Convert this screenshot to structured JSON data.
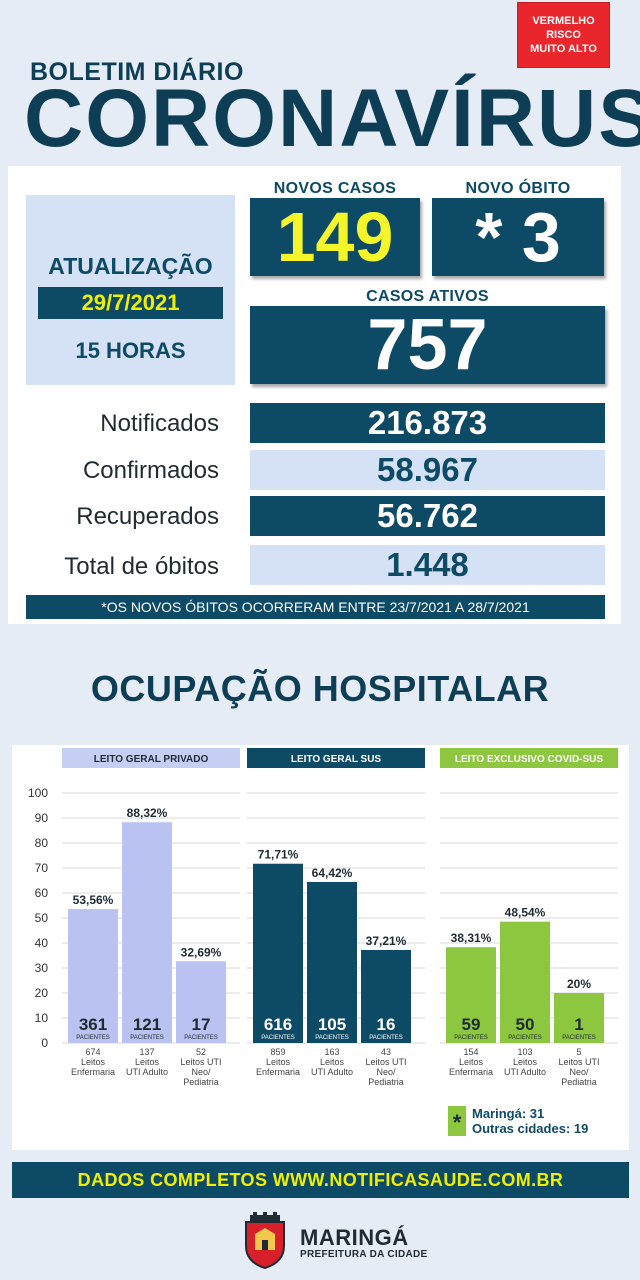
{
  "header": {
    "risk_badge": [
      "VERMELHO",
      "RISCO",
      "MUITO ALTO"
    ],
    "subtitle": "BOLETIM DIÁRIO",
    "title": "CORONAVÍRUS"
  },
  "update": {
    "label": "ATUALIZAÇÃO",
    "date": "29/7/2021",
    "hour": "15 HORAS"
  },
  "stats": {
    "novos_casos_label": "NOVOS CASOS",
    "novos_casos": "149",
    "novo_obito_label": "NOVO ÓBITO",
    "novo_obito": "* 3",
    "casos_ativos_label": "CASOS ATIVOS",
    "casos_ativos": "757"
  },
  "totals": [
    {
      "label": "Notificados",
      "value": "216.873"
    },
    {
      "label": "Confirmados",
      "value": "58.967"
    },
    {
      "label": "Recuperados",
      "value": "56.762"
    },
    {
      "label": "Total de óbitos",
      "value": "1.448"
    }
  ],
  "note": "*OS NOVOS ÓBITOS OCORRERAM ENTRE 23/7/2021 A 28/7/2021",
  "hospital_title": "OCUPAÇÃO HOSPITALAR",
  "colors": {
    "navy": "#0d4a66",
    "lilac": "#b9c2f0",
    "lilac_dark": "#c7cef4",
    "green": "#8dc63f",
    "yellow": "#f4f62a",
    "red": "#e8262b"
  },
  "chart_data": {
    "type": "bar",
    "ylim": [
      0,
      100
    ],
    "yticks": [
      0,
      10,
      20,
      30,
      40,
      50,
      60,
      70,
      80,
      90,
      100
    ],
    "patients_label": "PACIENTES",
    "groups": [
      {
        "name": "LEITO GERAL PRIVADO",
        "color": "#b9c2f0",
        "header_color": "#c7cef4",
        "header_text_color": "#1f2b33",
        "bars": [
          {
            "label": "53,56%",
            "value": 53.56,
            "patients": "361",
            "beds": [
              "674",
              "Leitos",
              "Enfermaria"
            ]
          },
          {
            "label": "88,32%",
            "value": 88.32,
            "patients": "121",
            "beds": [
              "137",
              "Leitos",
              "UTI Adulto"
            ]
          },
          {
            "label": "32,69%",
            "value": 32.69,
            "patients": "17",
            "beds": [
              "52",
              "Leitos UTI",
              "Neo/",
              "Pediatria"
            ]
          }
        ]
      },
      {
        "name": "LEITO GERAL SUS",
        "color": "#0d4a66",
        "header_color": "#0d4a66",
        "header_text_color": "#ffffff",
        "bars": [
          {
            "label": "71,71%",
            "value": 71.71,
            "patients": "616",
            "beds": [
              "859",
              "Leitos",
              "Enfermaria"
            ]
          },
          {
            "label": "64,42%",
            "value": 64.42,
            "patients": "105",
            "beds": [
              "163",
              "Leitos",
              "UTI Adulto"
            ]
          },
          {
            "label": "37,21%",
            "value": 37.21,
            "patients": "16",
            "beds": [
              "43",
              "Leitos UTI",
              "Neo/",
              "Pediatria"
            ]
          }
        ]
      },
      {
        "name": "LEITO EXCLUSIVO COVID-SUS",
        "color": "#8dc63f",
        "header_color": "#8dc63f",
        "header_text_color": "#ffffff",
        "bars": [
          {
            "label": "38,31%",
            "value": 38.31,
            "patients": "59",
            "beds": [
              "154",
              "Leitos",
              "Enfermaria"
            ]
          },
          {
            "label": "48,54%",
            "value": 48.54,
            "patients": "50",
            "beds": [
              "103",
              "Leitos",
              "UTI Adulto"
            ]
          },
          {
            "label": "20%",
            "value": 20,
            "patients": "1",
            "beds": [
              "5",
              "Leitos UTI",
              "Neo/",
              "Pediatria"
            ]
          }
        ]
      }
    ],
    "legend": {
      "symbol": "*",
      "lines": [
        "Maringá: 31",
        "Outras cidades: 19"
      ]
    }
  },
  "footer": "DADOS COMPLETOS  WWW.NOTIFICASAUDE.COM.BR",
  "city": {
    "name": "MARINGÁ",
    "sub": "PREFEITURA DA CIDADE"
  }
}
